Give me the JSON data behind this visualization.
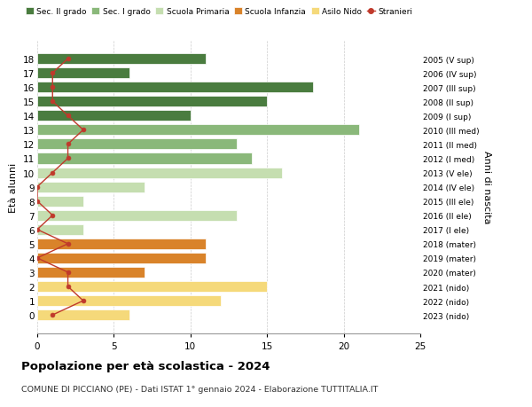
{
  "ages": [
    18,
    17,
    16,
    15,
    14,
    13,
    12,
    11,
    10,
    9,
    8,
    7,
    6,
    5,
    4,
    3,
    2,
    1,
    0
  ],
  "right_labels": [
    "2005 (V sup)",
    "2006 (IV sup)",
    "2007 (III sup)",
    "2008 (II sup)",
    "2009 (I sup)",
    "2010 (III med)",
    "2011 (II med)",
    "2012 (I med)",
    "2013 (V ele)",
    "2014 (IV ele)",
    "2015 (III ele)",
    "2016 (II ele)",
    "2017 (I ele)",
    "2018 (mater)",
    "2019 (mater)",
    "2020 (mater)",
    "2021 (nido)",
    "2022 (nido)",
    "2023 (nido)"
  ],
  "bar_values": [
    11,
    6,
    18,
    15,
    10,
    21,
    13,
    14,
    16,
    7,
    3,
    13,
    3,
    11,
    11,
    7,
    15,
    12,
    6
  ],
  "bar_colors": [
    "#4a7c3f",
    "#4a7c3f",
    "#4a7c3f",
    "#4a7c3f",
    "#4a7c3f",
    "#8ab87a",
    "#8ab87a",
    "#8ab87a",
    "#c5deb0",
    "#c5deb0",
    "#c5deb0",
    "#c5deb0",
    "#c5deb0",
    "#d9832a",
    "#d9832a",
    "#d9832a",
    "#f5d97a",
    "#f5d97a",
    "#f5d97a"
  ],
  "stranieri_values": [
    2,
    1,
    1,
    1,
    2,
    3,
    2,
    2,
    1,
    0,
    0,
    1,
    0,
    2,
    0,
    2,
    2,
    3,
    1
  ],
  "legend_labels": [
    "Sec. II grado",
    "Sec. I grado",
    "Scuola Primaria",
    "Scuola Infanzia",
    "Asilo Nido",
    "Stranieri"
  ],
  "legend_colors": [
    "#4a7c3f",
    "#8ab87a",
    "#c5deb0",
    "#d9832a",
    "#f5d97a",
    "#c0392b"
  ],
  "title": "Popolazione per età scolastica - 2024",
  "subtitle": "COMUNE DI PICCIANO (PE) - Dati ISTAT 1° gennaio 2024 - Elaborazione TUTTITALIA.IT",
  "ylabel": "Età alunni",
  "right_ylabel": "Anni di nascita",
  "xlim": [
    0,
    25
  ],
  "xticks": [
    0,
    5,
    10,
    15,
    20,
    25
  ],
  "bg_color": "#ffffff",
  "grid_color": "#cccccc",
  "bar_height": 0.75
}
